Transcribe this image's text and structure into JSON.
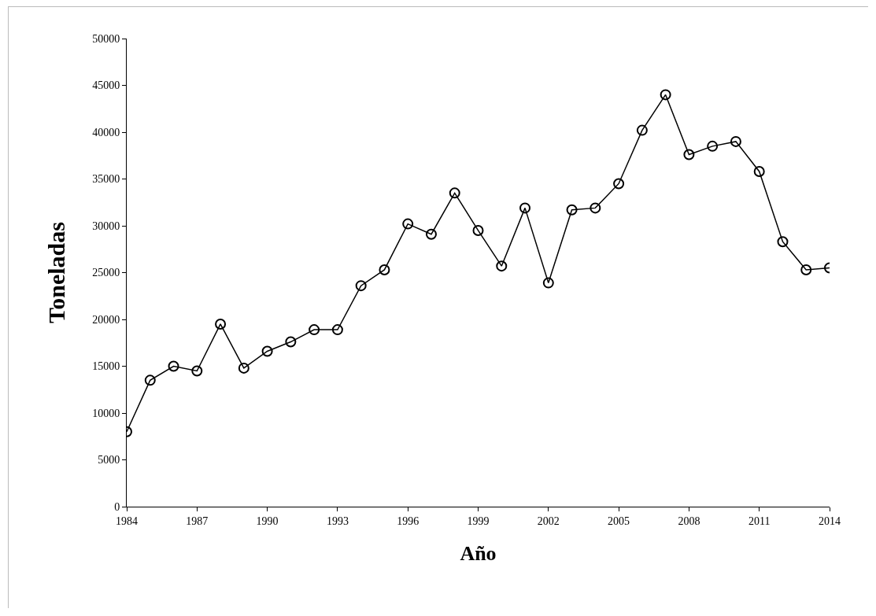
{
  "chart_data": {
    "type": "line",
    "xlabel": "Año",
    "ylabel": "Toneladas",
    "x": [
      1984,
      1985,
      1986,
      1987,
      1988,
      1989,
      1990,
      1991,
      1992,
      1993,
      1994,
      1995,
      1996,
      1997,
      1998,
      1999,
      2000,
      2001,
      2002,
      2003,
      2004,
      2005,
      2006,
      2007,
      2008,
      2009,
      2010,
      2011,
      2012,
      2013,
      2014
    ],
    "series": [
      {
        "color": "#000000",
        "values": [
          8000,
          13500,
          15000,
          14500,
          19500,
          14800,
          16600,
          17600,
          18900,
          18900,
          23600,
          25300,
          30200,
          29100,
          33500,
          29500,
          25700,
          31900,
          23900,
          31700,
          31900,
          34500,
          40200,
          44000,
          37600,
          38500,
          39000,
          35800,
          28300,
          25300,
          25500
        ]
      }
    ],
    "xlim": [
      1984,
      2014
    ],
    "xticks": [
      1984,
      1987,
      1990,
      1993,
      1996,
      1999,
      2002,
      2005,
      2008,
      2011,
      2014
    ],
    "ylim": [
      0,
      50000
    ],
    "yticks": [
      0,
      5000,
      10000,
      15000,
      20000,
      25000,
      30000,
      35000,
      40000,
      45000,
      50000
    ],
    "grid": false,
    "marker": "circle",
    "line_style": "solid"
  }
}
